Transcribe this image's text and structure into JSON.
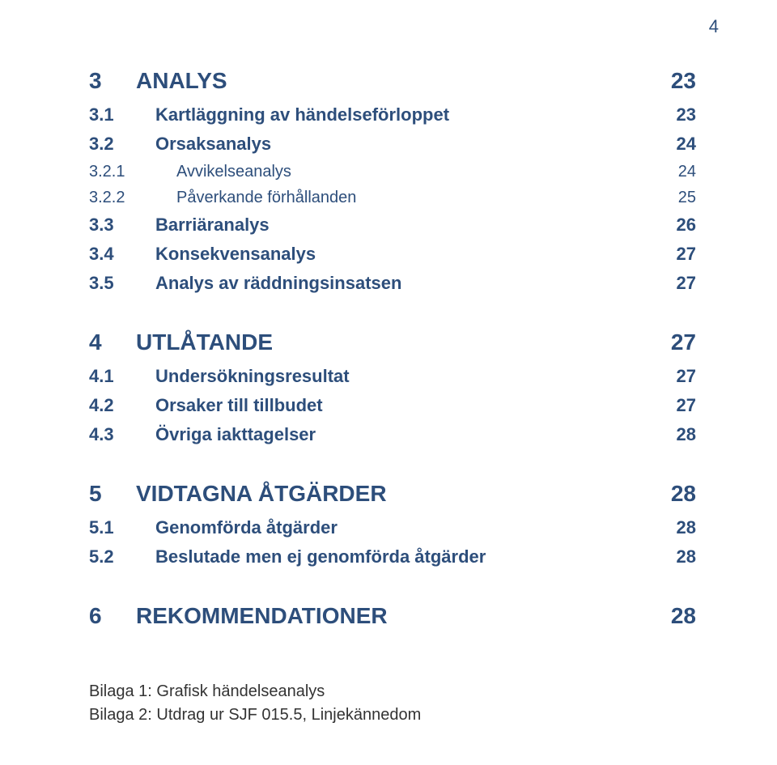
{
  "page_number": "4",
  "colors": {
    "heading": "#2d4e7b",
    "subheading": "#2d4e7b",
    "body": "#2d4e7b",
    "plain": "#333333",
    "background": "#ffffff"
  },
  "fonts": {
    "h1_size": 28,
    "h1_weight": "bold",
    "h2_size": 22,
    "h2_weight": "bold",
    "h3_size": 20,
    "h3_weight": "normal",
    "plain_size": 20,
    "num_col_width_h1": 58,
    "num_col_width_h2": 82,
    "num_col_width_h3": 108
  },
  "toc": [
    {
      "type": "h1",
      "num": "3",
      "title": "ANALYS",
      "page": "23"
    },
    {
      "type": "h2",
      "num": "3.1",
      "title": "Kartläggning av händelseförloppet",
      "page": "23"
    },
    {
      "type": "h2",
      "num": "3.2",
      "title": "Orsaksanalys",
      "page": "24"
    },
    {
      "type": "h3",
      "num": "3.2.1",
      "title": "Avvikelseanalys",
      "page": "24"
    },
    {
      "type": "h3",
      "num": "3.2.2",
      "title": "Påverkande förhållanden",
      "page": "25"
    },
    {
      "type": "h2",
      "num": "3.3",
      "title": "Barriäranalys",
      "page": "26"
    },
    {
      "type": "h2",
      "num": "3.4",
      "title": "Konsekvensanalys",
      "page": "27"
    },
    {
      "type": "h2",
      "num": "3.5",
      "title": "Analys av räddningsinsatsen",
      "page": "27"
    },
    {
      "type": "gap"
    },
    {
      "type": "h1",
      "num": "4",
      "title": "UTLÅTANDE",
      "page": "27"
    },
    {
      "type": "h2",
      "num": "4.1",
      "title": "Undersökningsresultat",
      "page": "27"
    },
    {
      "type": "h2",
      "num": "4.2",
      "title": "Orsaker till tillbudet",
      "page": "27"
    },
    {
      "type": "h2",
      "num": "4.3",
      "title": "Övriga iakttagelser",
      "page": "28"
    },
    {
      "type": "gap"
    },
    {
      "type": "h1",
      "num": "5",
      "title": "VIDTAGNA ÅTGÄRDER",
      "page": "28"
    },
    {
      "type": "h2",
      "num": "5.1",
      "title": "Genomförda åtgärder",
      "page": "28"
    },
    {
      "type": "h2",
      "num": "5.2",
      "title": "Beslutade men ej genomförda åtgärder",
      "page": "28"
    },
    {
      "type": "gap"
    },
    {
      "type": "h1",
      "num": "6",
      "title": "REKOMMENDATIONER",
      "page": "28"
    }
  ],
  "appendices": [
    "Bilaga 1: Grafisk händelseanalys",
    "Bilaga 2: Utdrag ur SJF 015.5, Linjekännedom"
  ]
}
